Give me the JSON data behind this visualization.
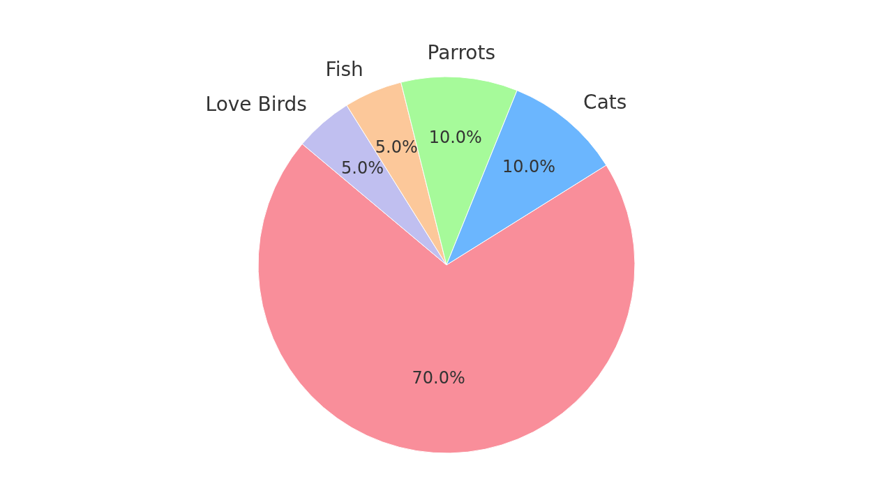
{
  "chart_data": {
    "type": "pie",
    "categories": [
      null,
      "Love Birds",
      "Fish",
      "Parrots",
      "Cats"
    ],
    "values": [
      70,
      5,
      5,
      10,
      10
    ],
    "value_labels": [
      "70.0%",
      "5.0%",
      "5.0%",
      "10.0%",
      "10.0%"
    ],
    "colors": [
      "#f98e9a",
      "#c0bff0",
      "#fcc89a",
      "#a6fa9a",
      "#6bb6fe"
    ],
    "legend": false
  }
}
